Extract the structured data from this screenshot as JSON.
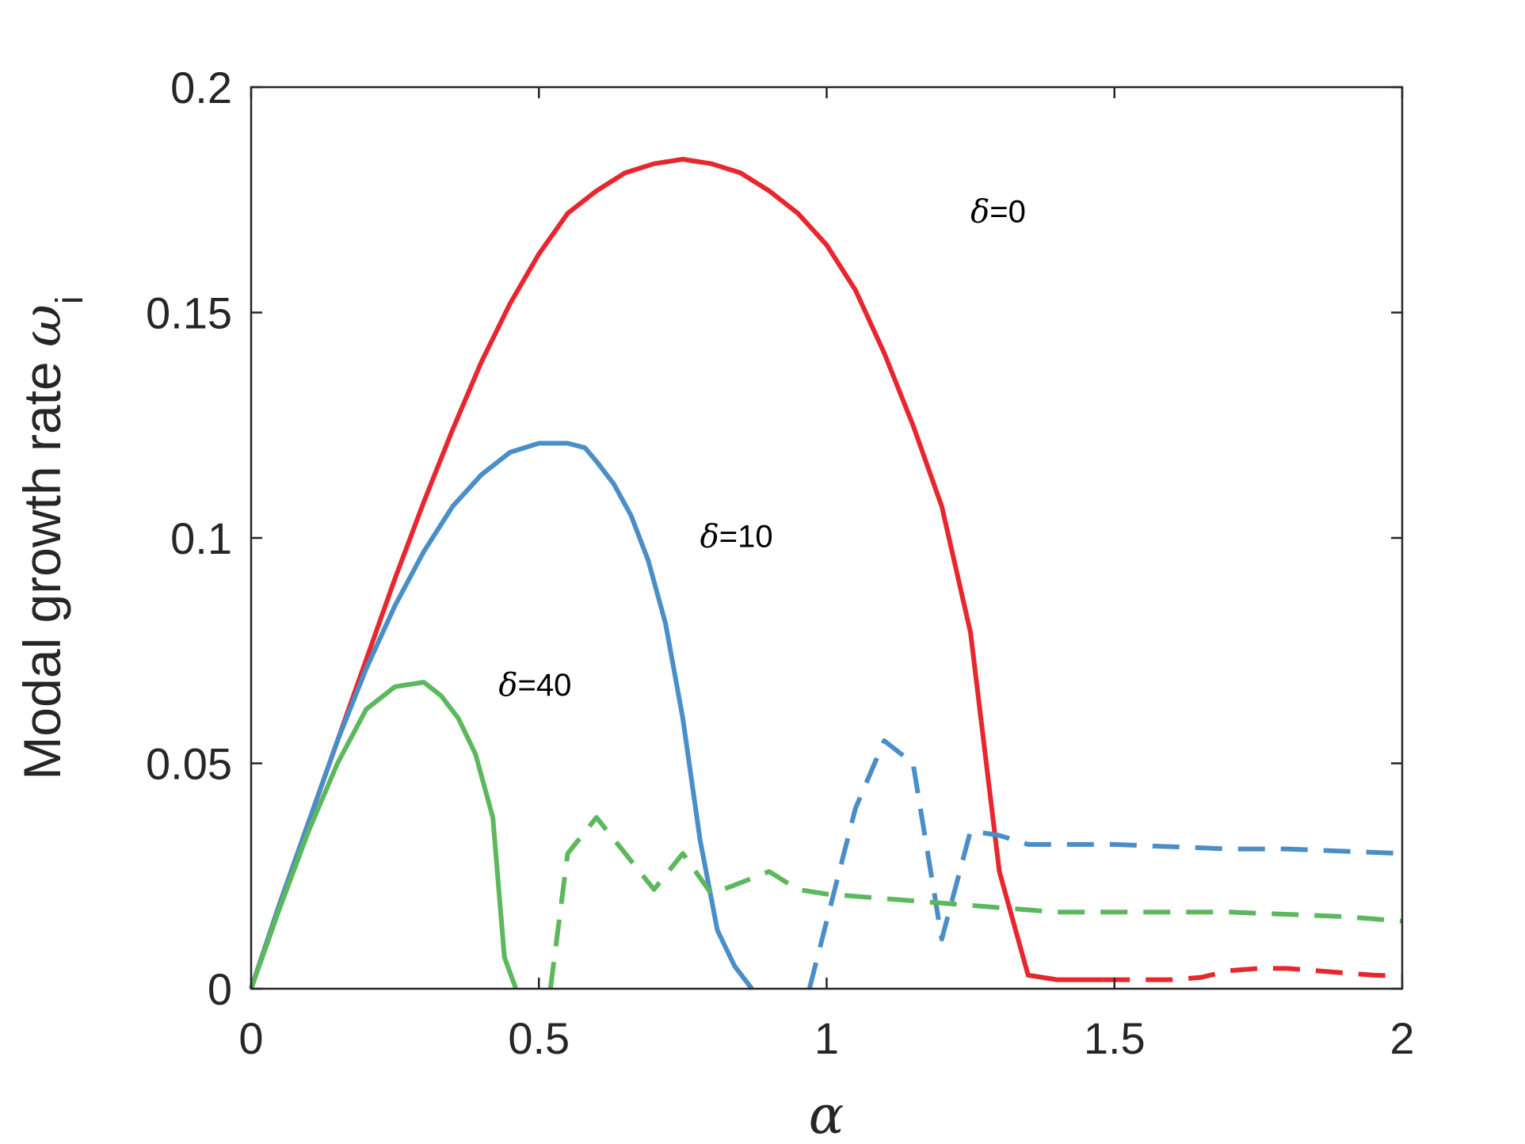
{
  "chart_data": {
    "type": "line",
    "xlabel": "α",
    "ylabel": "Modal growth rate ",
    "ylabel_symbol": "ω",
    "ylabel_subscript": "i",
    "xlim": [
      0,
      2
    ],
    "ylim": [
      0,
      0.2
    ],
    "xticks": [
      0,
      0.5,
      1,
      1.5,
      2
    ],
    "xtick_labels": [
      "0",
      "0.5",
      "1",
      "1.5",
      "2"
    ],
    "yticks": [
      0,
      0.05,
      0.1,
      0.15,
      0.2
    ],
    "ytick_labels": [
      "0",
      "0.05",
      "0.1",
      "0.15",
      "0.2"
    ],
    "grid": false,
    "legend": "none",
    "colors": {
      "red": "#e8262e",
      "blue": "#4a8ec8",
      "green": "#5cb85c",
      "axis": "#262626"
    },
    "series": [
      {
        "key": "d0_solid",
        "color": "#e8262e",
        "dash": false,
        "x": [
          0,
          0.05,
          0.1,
          0.15,
          0.2,
          0.25,
          0.3,
          0.35,
          0.4,
          0.45,
          0.5,
          0.55,
          0.6,
          0.65,
          0.7,
          0.75,
          0.8,
          0.85,
          0.9,
          0.95,
          1.0,
          1.05,
          1.1,
          1.15,
          1.2,
          1.25,
          1.3,
          1.35,
          1.4,
          1.44,
          1.48
        ],
        "y": [
          0,
          0.019,
          0.037,
          0.055,
          0.073,
          0.091,
          0.108,
          0.124,
          0.139,
          0.152,
          0.163,
          0.172,
          0.177,
          0.181,
          0.183,
          0.184,
          0.183,
          0.181,
          0.177,
          0.172,
          0.165,
          0.155,
          0.141,
          0.125,
          0.107,
          0.079,
          0.026,
          0.003,
          0.002,
          0.002,
          0.002
        ]
      },
      {
        "key": "d0_dashed",
        "color": "#e8262e",
        "dash": true,
        "x": [
          1.48,
          1.55,
          1.6,
          1.65,
          1.7,
          1.75,
          1.8,
          1.85,
          1.9,
          1.95,
          2.0
        ],
        "y": [
          0.002,
          0.002,
          0.002,
          0.0025,
          0.004,
          0.0045,
          0.0045,
          0.004,
          0.0035,
          0.003,
          0.0028
        ]
      },
      {
        "key": "d10_solid",
        "color": "#4a8ec8",
        "dash": false,
        "x": [
          0,
          0.05,
          0.1,
          0.15,
          0.2,
          0.25,
          0.3,
          0.35,
          0.4,
          0.45,
          0.5,
          0.55,
          0.58,
          0.6,
          0.63,
          0.66,
          0.69,
          0.72,
          0.75,
          0.78,
          0.81,
          0.84,
          0.87
        ],
        "y": [
          0,
          0.019,
          0.037,
          0.055,
          0.071,
          0.085,
          0.097,
          0.107,
          0.114,
          0.119,
          0.121,
          0.121,
          0.12,
          0.117,
          0.112,
          0.105,
          0.095,
          0.081,
          0.06,
          0.033,
          0.013,
          0.005,
          0
        ]
      },
      {
        "key": "d10_dashed",
        "color": "#4a8ec8",
        "dash": true,
        "x": [
          0.97,
          1.0,
          1.05,
          1.1,
          1.15,
          1.2,
          1.25,
          1.3,
          1.35,
          1.4,
          1.5,
          1.6,
          1.7,
          1.8,
          1.9,
          2.0
        ],
        "y": [
          0,
          0.015,
          0.04,
          0.055,
          0.05,
          0.011,
          0.035,
          0.034,
          0.032,
          0.032,
          0.032,
          0.0315,
          0.031,
          0.031,
          0.0305,
          0.03
        ]
      },
      {
        "key": "d40_solid",
        "color": "#5cb85c",
        "dash": false,
        "x": [
          0,
          0.05,
          0.1,
          0.15,
          0.2,
          0.25,
          0.3,
          0.33,
          0.36,
          0.39,
          0.42,
          0.44,
          0.46
        ],
        "y": [
          0,
          0.018,
          0.035,
          0.05,
          0.062,
          0.067,
          0.068,
          0.065,
          0.06,
          0.052,
          0.038,
          0.007,
          0
        ]
      },
      {
        "key": "d40_dashed",
        "color": "#5cb85c",
        "dash": true,
        "x": [
          0.52,
          0.55,
          0.6,
          0.65,
          0.7,
          0.75,
          0.8,
          0.9,
          0.95,
          1.0,
          1.1,
          1.2,
          1.3,
          1.4,
          1.5,
          1.6,
          1.7,
          1.8,
          1.9,
          2.0
        ],
        "y": [
          0,
          0.03,
          0.038,
          0.03,
          0.022,
          0.03,
          0.021,
          0.026,
          0.022,
          0.021,
          0.02,
          0.019,
          0.018,
          0.017,
          0.017,
          0.017,
          0.017,
          0.0165,
          0.016,
          0.015
        ]
      }
    ],
    "annotations": [
      {
        "symbol": "δ",
        "text": "=0",
        "x": 1.25,
        "y": 0.17
      },
      {
        "symbol": "δ",
        "text": "=10",
        "x": 0.78,
        "y": 0.098
      },
      {
        "symbol": "δ",
        "text": "=40",
        "x": 0.43,
        "y": 0.065
      }
    ]
  }
}
